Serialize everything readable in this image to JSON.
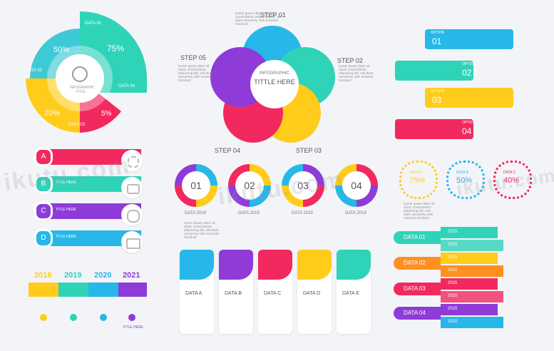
{
  "colors": {
    "cyan": "#3ec9d6",
    "teal": "#2fd3b8",
    "yellow": "#ffcc1c",
    "pink": "#f2295e",
    "purple": "#8e3bd8",
    "blue": "#27b7e8",
    "orange": "#ff8f1f"
  },
  "pie": {
    "title": "INFOGRAPHIC TITLE",
    "labels": [
      "DATA 01",
      "DATA 02",
      "DATA 03",
      "DATA 04"
    ],
    "pcts": [
      "75%",
      "50%",
      "20%",
      "5%"
    ]
  },
  "cycle": {
    "title_top": "INFOGRAPHIC",
    "title_main": "TITTLE HERE",
    "steps": [
      "STEP 01",
      "STEP 02",
      "STEP 03",
      "STEP 04",
      "STEP 05"
    ]
  },
  "options": {
    "items": [
      {
        "label": "OPTION",
        "num": "01"
      },
      {
        "label": "OPTION",
        "num": "02"
      },
      {
        "label": "OPTION",
        "num": "03"
      },
      {
        "label": "OPTION",
        "num": "04"
      }
    ]
  },
  "abcd": {
    "letters": [
      "A",
      "B",
      "C",
      "D"
    ],
    "title": "TITLE HERE"
  },
  "donuts": {
    "nums": [
      "01",
      "02",
      "03",
      "04"
    ],
    "year": "DATA 2019"
  },
  "rings": {
    "items": [
      {
        "label": "DATA A",
        "pct": "75%"
      },
      {
        "label": "DATA B",
        "pct": "50%"
      },
      {
        "label": "DATA C",
        "pct": "40%"
      }
    ]
  },
  "timeline": {
    "years": [
      "2018",
      "2019",
      "2020",
      "2021"
    ],
    "title": "TITLE HERE"
  },
  "cards": {
    "items": [
      "DATA A",
      "DATA B",
      "DATA C",
      "DATA D",
      "DATA E"
    ]
  },
  "databars": {
    "groups": [
      "DATA 01",
      "DATA 02",
      "DATA 03",
      "DATA 04"
    ],
    "years": [
      "2015",
      "2020",
      "2015",
      "2020",
      "2015",
      "2020",
      "2015",
      "2020"
    ]
  },
  "lorem": "Lorem ipsum dolor sit amet, consectetuer adipiscing elit, sed diam nonummy nibh euismod tincidunt",
  "watermark": "ikutu.com"
}
